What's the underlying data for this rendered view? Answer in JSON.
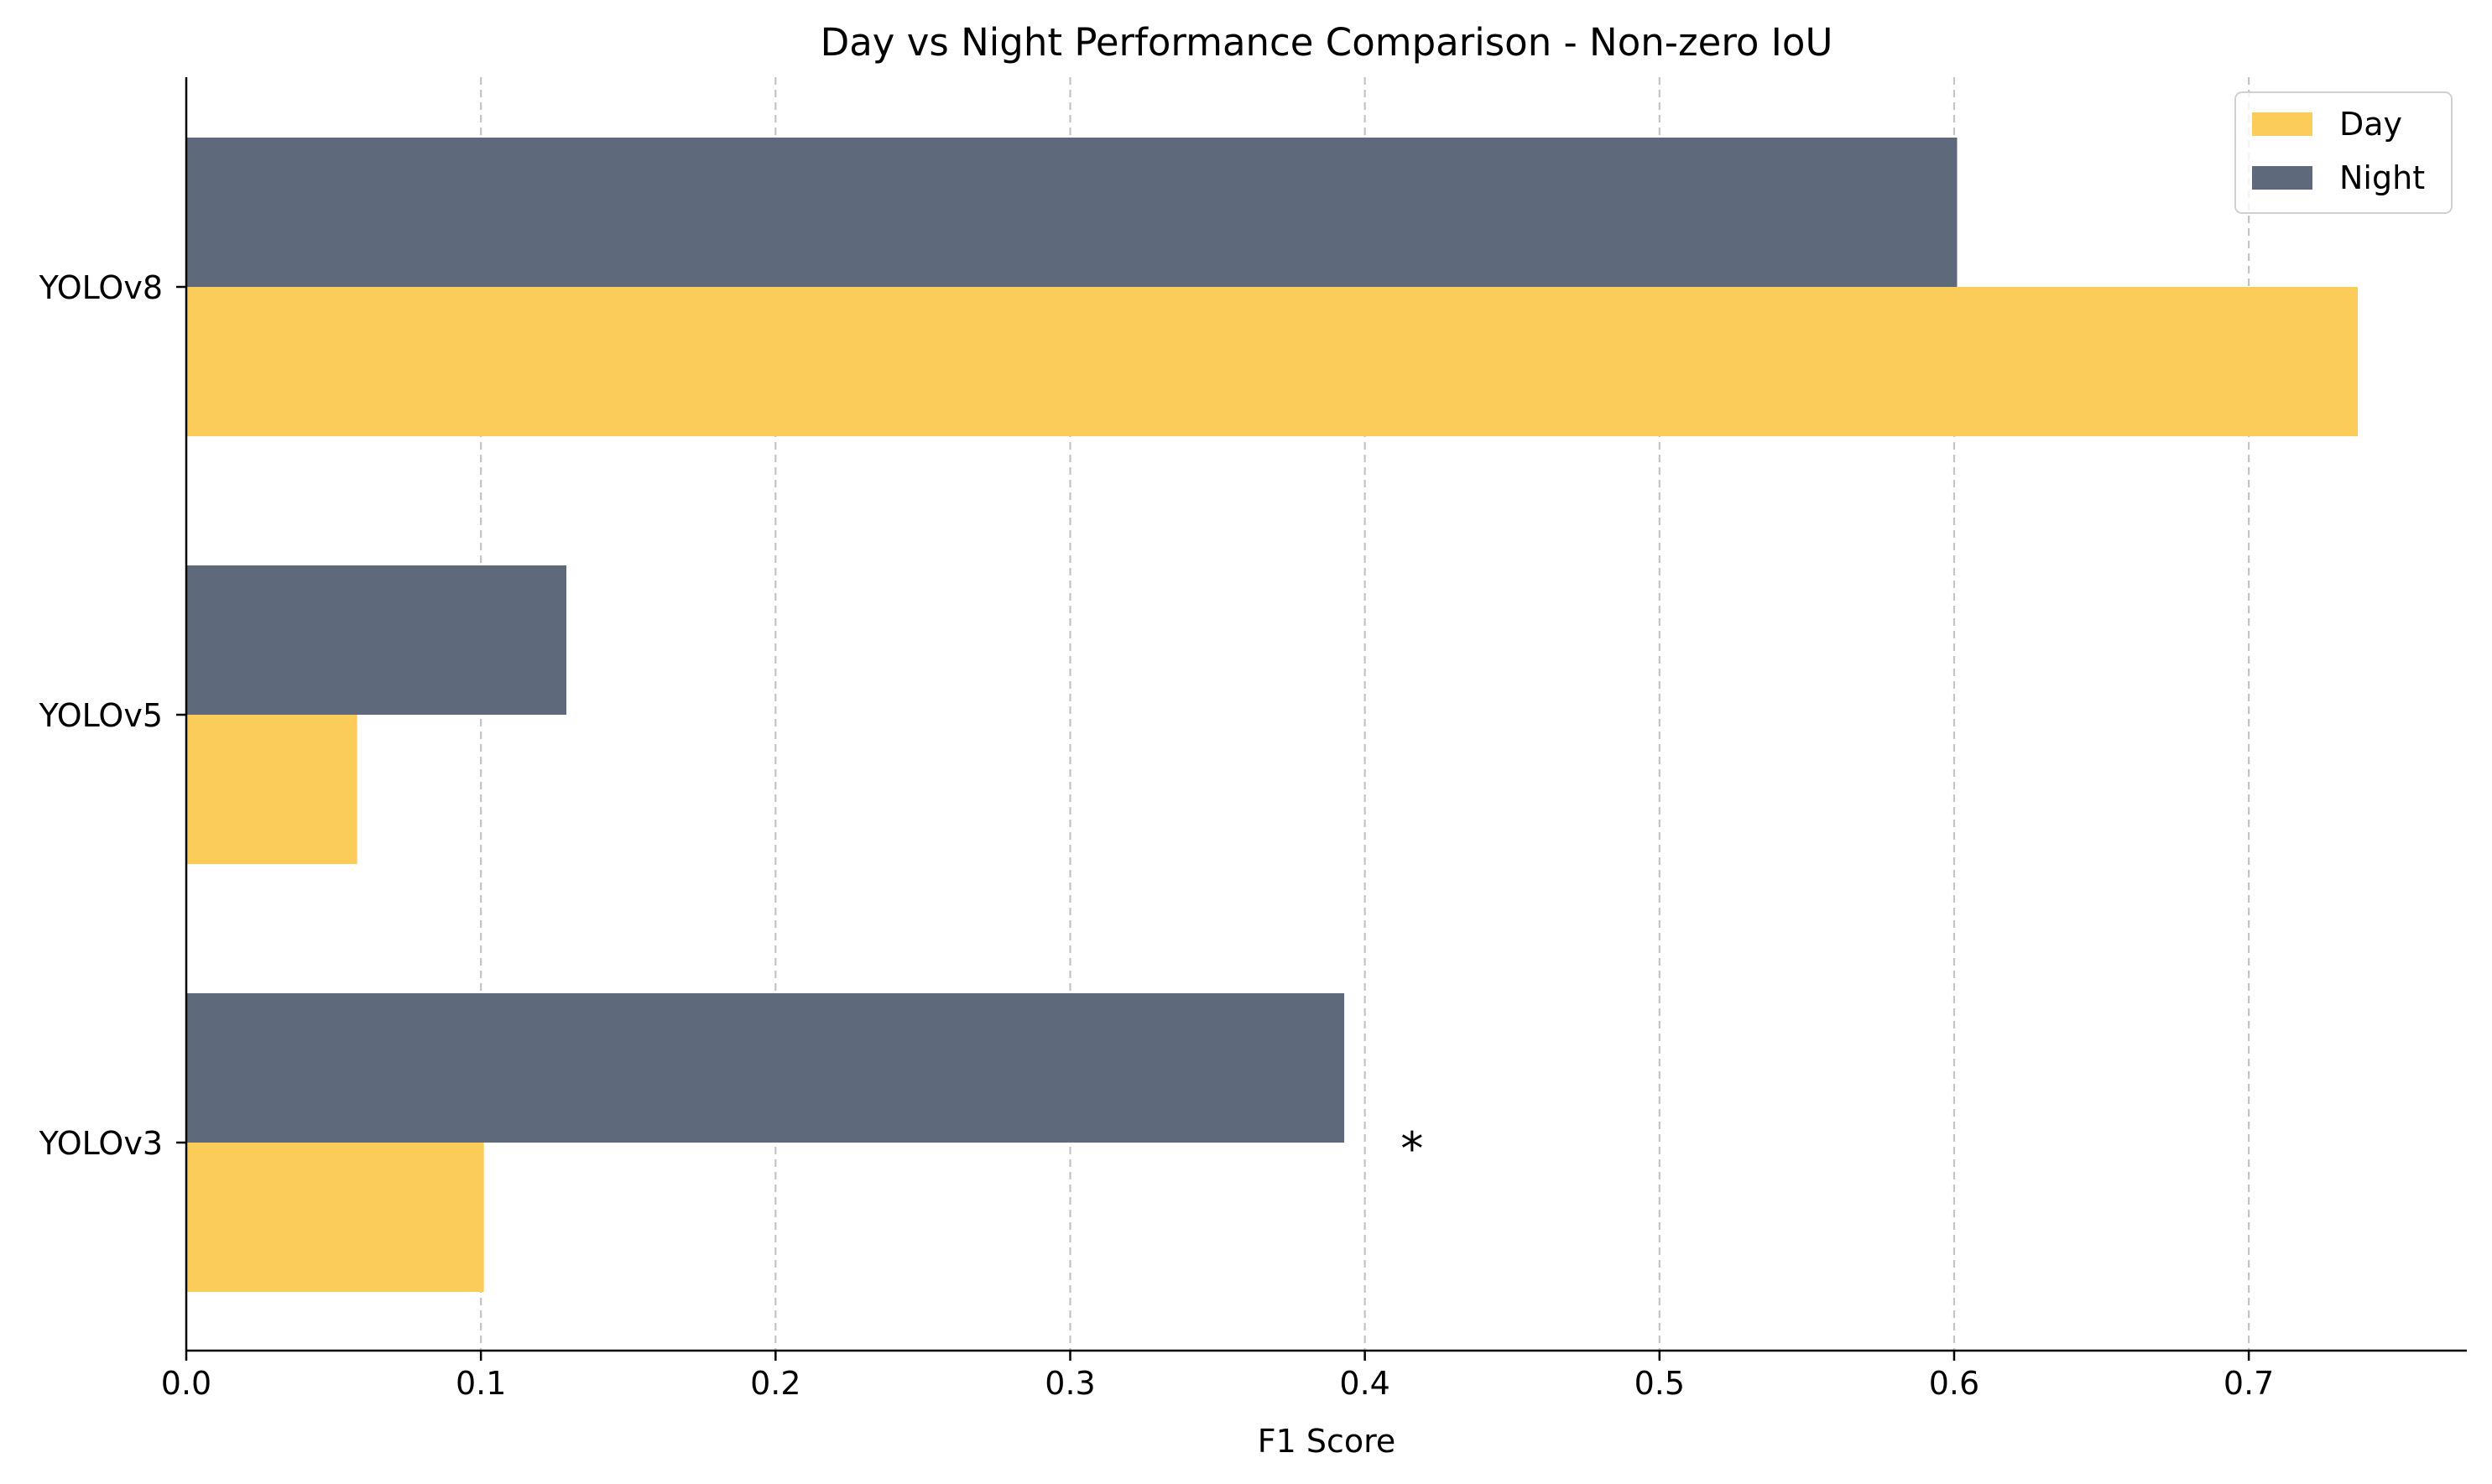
{
  "chart_data": {
    "type": "bar",
    "orientation": "horizontal",
    "title": "Day vs Night Performance Comparison - Non-zero IoU",
    "xlabel": "F1 Score",
    "ylabel": "",
    "categories": [
      "YOLOv3",
      "YOLOv5",
      "YOLOv8"
    ],
    "series": [
      {
        "name": "Day",
        "color": "#FCCC5B",
        "values": [
          0.101,
          0.058,
          0.737
        ]
      },
      {
        "name": "Night",
        "color": "#5E6A7B",
        "values": [
          0.393,
          0.129,
          0.601
        ]
      }
    ],
    "xlim": [
      0.0,
      0.774
    ],
    "xticks": [
      0.0,
      0.1,
      0.2,
      0.3,
      0.4,
      0.5,
      0.6,
      0.7
    ],
    "xtick_labels": [
      "0.0",
      "0.1",
      "0.2",
      "0.3",
      "0.4",
      "0.5",
      "0.6",
      "0.7"
    ],
    "grid": {
      "axis": "x",
      "style": "dashed"
    },
    "legend": {
      "position": "top-right",
      "entries": [
        "Day",
        "Night"
      ]
    },
    "annotations": [
      {
        "text": "*",
        "category": "YOLOv3",
        "x": 0.416
      }
    ]
  }
}
